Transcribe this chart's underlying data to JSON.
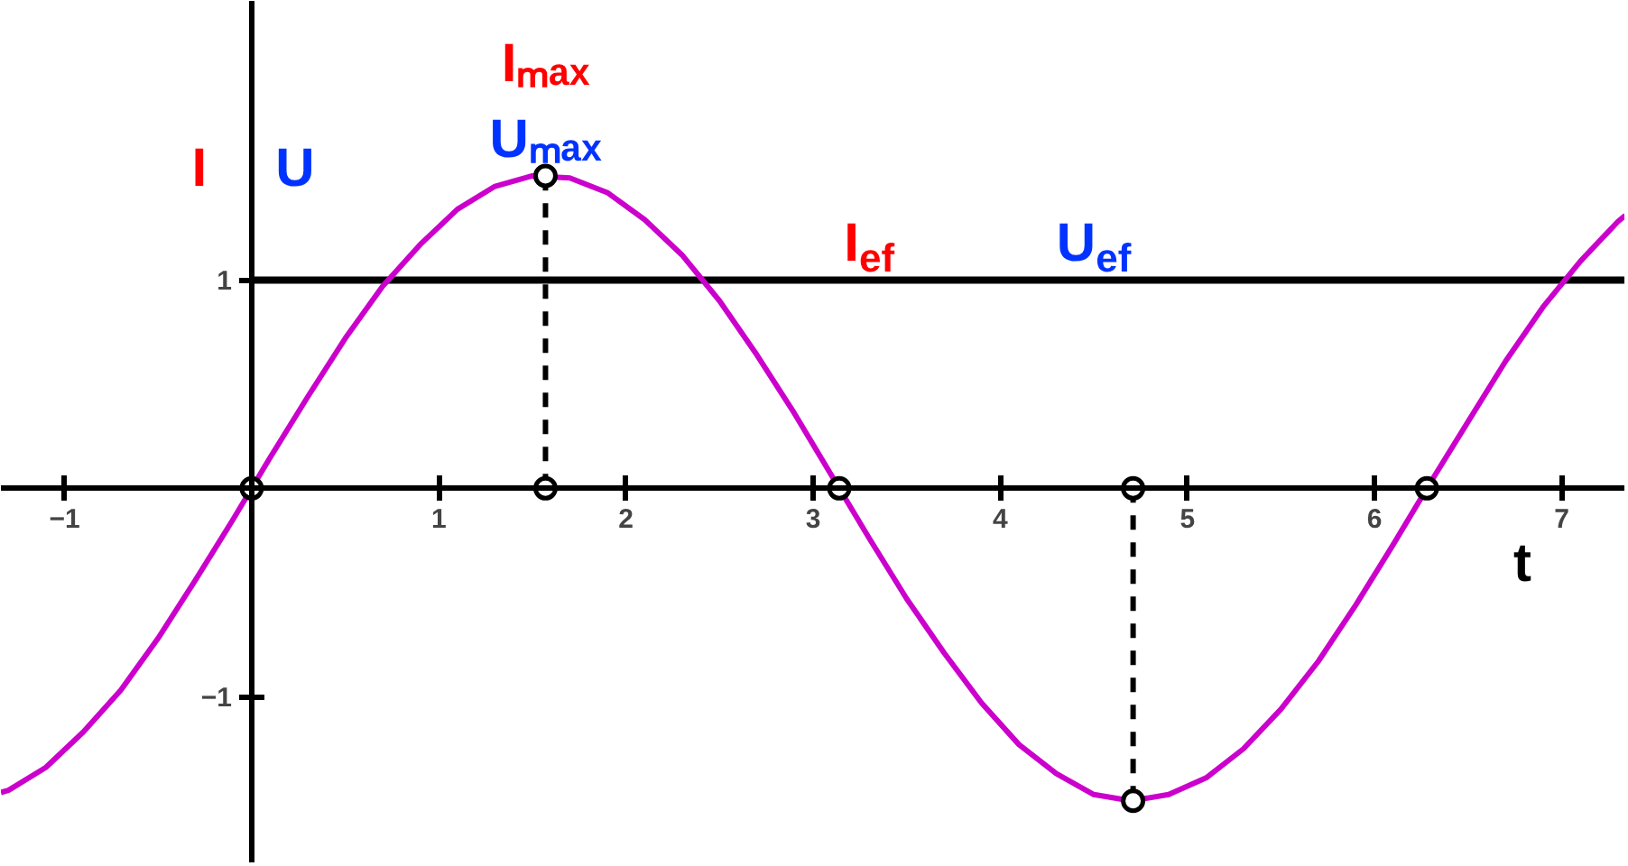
{
  "chart_data": {
    "type": "line",
    "xlabel": "t",
    "xlim": [
      -1.34,
      7.34
    ],
    "ylim": [
      -1.8,
      2.34
    ],
    "xticks": [
      -1,
      1,
      2,
      3,
      4,
      5,
      6,
      7
    ],
    "yticks": [
      -1,
      1
    ],
    "ref_lines": [
      {
        "axis": "y",
        "value": 1,
        "color": "#000000"
      }
    ],
    "annotations": [
      "I",
      "U",
      {
        "text": "Iₘₐₓ",
        "x": 1.57,
        "y": 1.5
      },
      {
        "text": "Uₘₐₓ",
        "x": 1.57,
        "y": 1.5
      },
      {
        "text": "I$_{ef}$",
        "x": 3.3,
        "y": 1
      },
      {
        "text": "U$_{ef}$",
        "x": 4.5,
        "y": 1
      }
    ],
    "series": [
      {
        "color": "#cc00cc",
        "x": [
          -1.34,
          -1.3,
          -1.1,
          -0.9,
          -0.7,
          -0.5,
          -0.3,
          -0.1,
          0.1,
          0.3,
          0.5,
          0.7,
          0.9,
          1.1,
          1.3,
          1.5,
          1.7,
          1.9,
          2.1,
          2.3,
          2.5,
          2.7,
          2.9,
          3.1,
          3.3,
          3.5,
          3.7,
          3.9,
          4.1,
          4.3,
          4.5,
          4.7,
          4.9,
          5.1,
          5.3,
          5.5,
          5.7,
          5.9,
          6.1,
          6.3,
          6.5,
          6.7,
          6.9,
          7.1,
          7.3,
          7.34
        ],
        "values": [
          -1.46,
          -1.45,
          -1.34,
          -1.17,
          -0.97,
          -0.72,
          -0.44,
          -0.15,
          0.15,
          0.44,
          0.72,
          0.97,
          1.17,
          1.34,
          1.45,
          1.5,
          1.49,
          1.42,
          1.29,
          1.12,
          0.9,
          0.64,
          0.36,
          0.06,
          -0.24,
          -0.53,
          -0.79,
          -1.03,
          -1.23,
          -1.37,
          -1.47,
          -1.5,
          -1.47,
          -1.39,
          -1.25,
          -1.06,
          -0.83,
          -0.56,
          -0.27,
          0.03,
          0.32,
          0.61,
          0.87,
          1.09,
          1.28,
          1.31
        ]
      },
      {
        "type": "line",
        "color": "#000000",
        "line_style": "dashed",
        "x": [
          1.57,
          1.57
        ],
        "values": [
          0,
          1.5
        ]
      },
      {
        "type": "line",
        "color": "#000000",
        "line_style": "dashed",
        "x": [
          4.71,
          4.71
        ],
        "values": [
          0,
          -1.5
        ]
      },
      {
        "type": "scatter",
        "color": "#000000",
        "marker": "circle",
        "x": [
          0,
          1.57,
          1.57,
          3.14,
          4.71,
          4.71,
          6.28
        ],
        "values": [
          0,
          0,
          1.5,
          0,
          0,
          -1.5,
          0
        ]
      }
    ]
  }
}
